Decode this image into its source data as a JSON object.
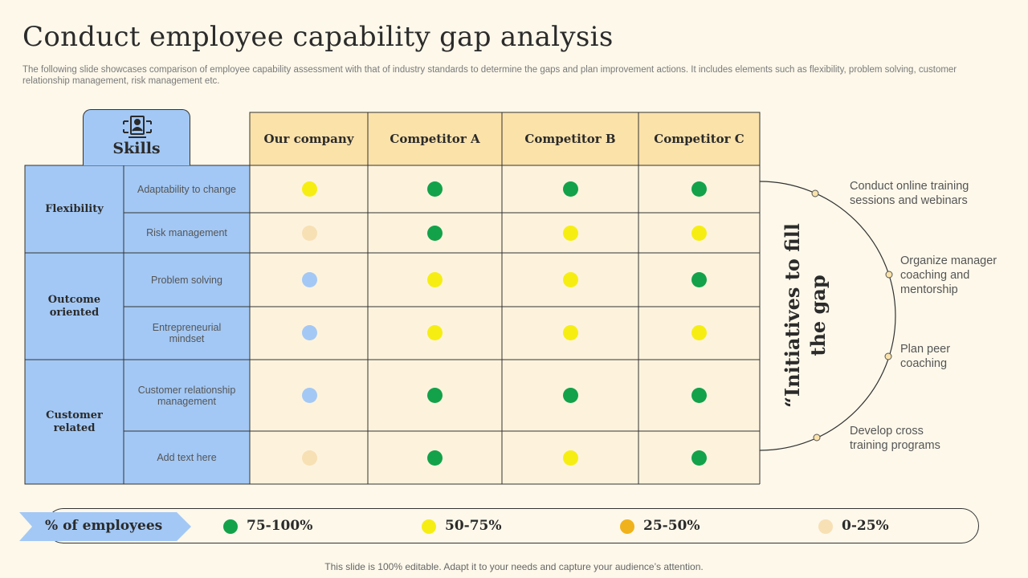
{
  "title": "Conduct employee capability gap analysis",
  "subtitle": "The following slide showcases comparison of employee capability assessment with that of industry standards to determine the gaps and plan improvement actions. It includes elements such as flexibility, problem solving, customer relationship management, risk management etc.",
  "skills_header": "Skills",
  "columns": [
    "Our company",
    "Competitor A",
    "Competitor B",
    "Competitor C"
  ],
  "groups": [
    {
      "label": "Flexibility"
    },
    {
      "label": "Outcome oriented"
    },
    {
      "label": "Customer related"
    }
  ],
  "rows": [
    {
      "skill": "Adaptability to change",
      "ratings": [
        "50-75%",
        "75-100%",
        "75-100%",
        "75-100%"
      ]
    },
    {
      "skill": "Risk management",
      "ratings": [
        "0-25%",
        "75-100%",
        "50-75%",
        "50-75%"
      ]
    },
    {
      "skill": "Problem solving",
      "ratings": [
        "none",
        "50-75%",
        "50-75%",
        "75-100%"
      ]
    },
    {
      "skill": "Entrepreneurial mindset",
      "ratings": [
        "none",
        "50-75%",
        "50-75%",
        "50-75%"
      ]
    },
    {
      "skill": "Customer relationship management",
      "ratings": [
        "none",
        "75-100%",
        "75-100%",
        "75-100%"
      ]
    },
    {
      "skill": "Add text here",
      "ratings": [
        "0-25%",
        "75-100%",
        "50-75%",
        "75-100%"
      ]
    }
  ],
  "initiatives": {
    "title": "“Initiatives to fill the gap",
    "items": [
      "Conduct online training sessions and webinars",
      "Organize manager coaching and mentorship",
      "Plan peer coaching",
      "Develop cross training programs"
    ]
  },
  "legend": {
    "title": "% of employees",
    "items": [
      {
        "label": "75-100%",
        "color": "#13a24a"
      },
      {
        "label": "50-75%",
        "color": "#f6ee12"
      },
      {
        "label": "25-50%",
        "color": "#f0b21c"
      },
      {
        "label": "0-25%",
        "color": "#f7e0b4"
      }
    ]
  },
  "unrated_color": "#a3c8f5",
  "footer": "This slide is 100% editable. Adapt it to your needs and capture your audience’s attention."
}
